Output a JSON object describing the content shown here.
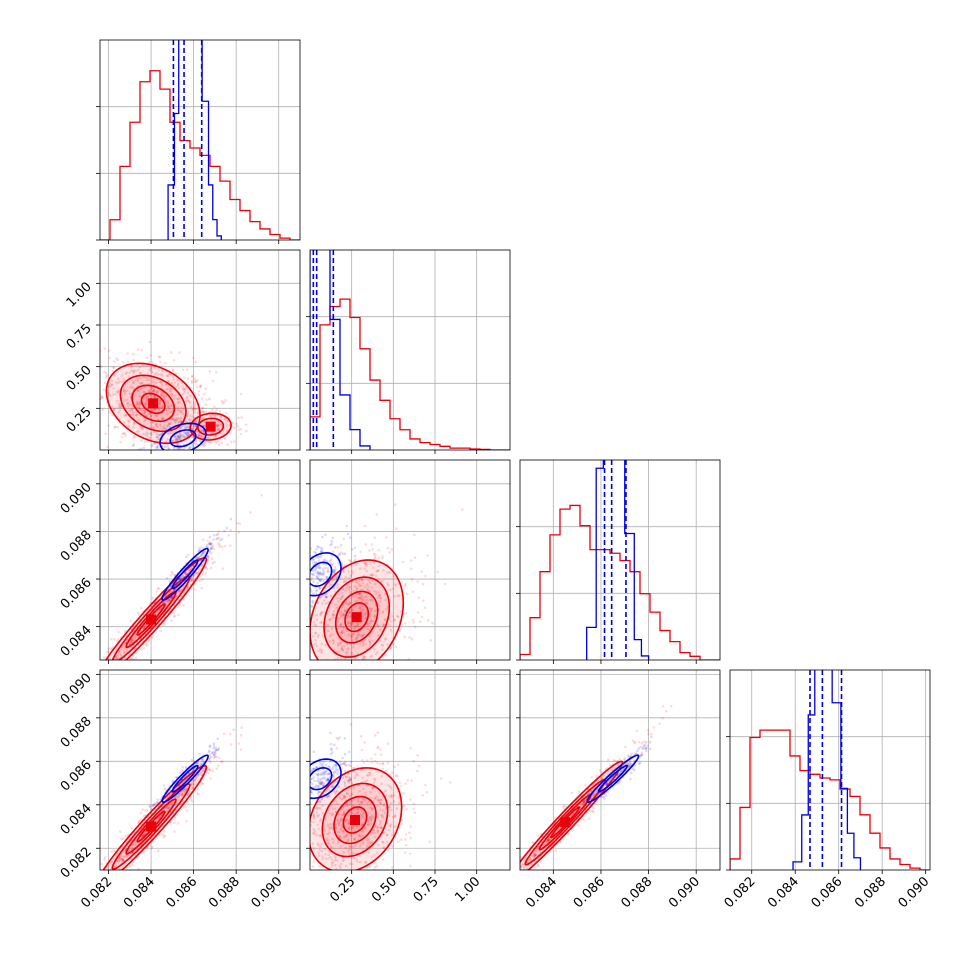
{
  "chart_data": {
    "type": "corner",
    "parameters": 4,
    "grid": true,
    "colors": {
      "red": "#e8000b",
      "blue": "#0000dd",
      "tick": "#000000",
      "grid": "#b0b0b0"
    },
    "axes": {
      "x0": {
        "range": [
          0.0816,
          0.091
        ],
        "ticks": [
          0.082,
          0.084,
          0.086,
          0.088,
          0.09
        ],
        "tick_labels": [
          "0.082",
          "0.084",
          "0.086",
          "0.088",
          "0.090"
        ]
      },
      "x1": {
        "range": [
          0.0,
          1.2
        ],
        "ticks": [
          0.25,
          0.5,
          0.75,
          1.0
        ],
        "tick_labels": [
          "0.25",
          "0.50",
          "0.75",
          "1.00"
        ]
      },
      "x2": {
        "range": [
          0.0826,
          0.091
        ],
        "ticks": [
          0.084,
          0.086,
          0.088,
          0.09
        ],
        "tick_labels": [
          "0.084",
          "0.086",
          "0.088",
          "0.090"
        ]
      },
      "x3": {
        "range": [
          0.081,
          0.0902
        ],
        "ticks": [
          0.082,
          0.084,
          0.086,
          0.088,
          0.09
        ],
        "tick_labels": [
          "0.082",
          "0.084",
          "0.086",
          "0.088",
          "0.090"
        ]
      },
      "y1": {
        "range": [
          0.0,
          1.2
        ],
        "ticks": [
          0.25,
          0.5,
          0.75,
          1.0
        ],
        "tick_labels": [
          "0.25",
          "0.50",
          "0.75",
          "1.00"
        ]
      },
      "y2": {
        "range": [
          0.0826,
          0.091
        ],
        "ticks": [
          0.084,
          0.086,
          0.088,
          0.09
        ],
        "tick_labels": [
          "0.084",
          "0.086",
          "0.088",
          "0.090"
        ]
      },
      "y3": {
        "range": [
          0.081,
          0.0902
        ],
        "ticks": [
          0.082,
          0.084,
          0.086,
          0.088,
          0.09
        ],
        "tick_labels": [
          "0.082",
          "0.084",
          "0.086",
          "0.088",
          "0.090"
        ]
      }
    },
    "histograms": [
      {
        "param": 0,
        "range": [
          0.0816,
          0.091
        ],
        "red": [
          0.0,
          0.11,
          0.4,
          0.64,
          0.86,
          0.92,
          0.82,
          0.64,
          0.54,
          0.5,
          0.46,
          0.4,
          0.32,
          0.22,
          0.16,
          0.1,
          0.06,
          0.03,
          0.01,
          0.0
        ],
        "blue_edges": [
          0.0848,
          0.0851,
          0.0853,
          0.0857,
          0.0861,
          0.0864,
          0.0867,
          0.0869,
          0.0871,
          0.0873
        ],
        "blue_counts": [
          0.27,
          0.62,
          1.0,
          1.0,
          1.0,
          0.68,
          0.27,
          0.1,
          0.02
        ],
        "blue_quantiles": [
          0.08505,
          0.08555,
          0.08638
        ]
      },
      {
        "param": 1,
        "range": [
          0.0,
          1.2
        ],
        "red": [
          0.18,
          0.68,
          0.78,
          0.82,
          0.72,
          0.55,
          0.38,
          0.27,
          0.17,
          0.11,
          0.06,
          0.04,
          0.03,
          0.02,
          0.01,
          0.01,
          0.005,
          0.003,
          0.0,
          0.0
        ],
        "blue_edges": [
          0.0,
          0.06,
          0.12,
          0.18,
          0.24,
          0.3,
          0.36
        ],
        "blue_counts": [
          1.0,
          1.0,
          0.64,
          0.27,
          0.1,
          0.02
        ],
        "blue_quantiles": [
          0.02,
          0.04,
          0.14
        ]
      },
      {
        "param": 2,
        "range": [
          0.0826,
          0.091
        ],
        "red": [
          0.03,
          0.23,
          0.48,
          0.68,
          0.82,
          0.84,
          0.73,
          0.6,
          0.6,
          0.58,
          0.54,
          0.48,
          0.36,
          0.26,
          0.16,
          0.1,
          0.04,
          0.02,
          0.0,
          0.0
        ],
        "blue_edges": [
          0.0854,
          0.0858,
          0.0861,
          0.0865,
          0.087,
          0.0874,
          0.0877,
          0.088
        ],
        "blue_counts": [
          0.16,
          0.94,
          1.0,
          1.0,
          0.62,
          0.1,
          0.02
        ],
        "blue_quantiles": [
          0.08615,
          0.08645,
          0.08705
        ]
      },
      {
        "param": 3,
        "range": [
          0.081,
          0.0902
        ],
        "red": [
          0.06,
          0.34,
          0.72,
          0.76,
          0.76,
          0.76,
          0.62,
          0.54,
          0.52,
          0.5,
          0.49,
          0.44,
          0.4,
          0.3,
          0.2,
          0.12,
          0.06,
          0.03,
          0.01,
          0.0
        ],
        "blue_edges": [
          0.0839,
          0.0843,
          0.0846,
          0.0849,
          0.0853,
          0.0857,
          0.0861,
          0.0864,
          0.0867,
          0.087
        ],
        "blue_counts": [
          0.04,
          0.27,
          0.76,
          1.0,
          1.0,
          0.82,
          0.4,
          0.18,
          0.06
        ],
        "blue_quantiles": [
          0.08468,
          0.08525,
          0.08613
        ]
      }
    ],
    "scatter_2d": [
      {
        "x": 0,
        "y": 1,
        "red": {
          "center": [
            0.0841,
            0.28
          ],
          "spread": [
            0.0011,
            0.12
          ],
          "rho": -0.3,
          "contours": [
            0.5,
            0.9,
            1.4,
            2.0
          ]
        },
        "red_tail": {
          "center": [
            0.0868,
            0.14
          ],
          "spread": [
            0.0006,
            0.05
          ],
          "rho": 0.1,
          "contours": [
            1.0,
            1.6
          ]
        },
        "blue": {
          "center": [
            0.0855,
            0.07
          ],
          "spread": [
            0.0006,
            0.05
          ],
          "rho": 0.3,
          "contours": [
            1.0,
            1.8
          ]
        }
      },
      {
        "x": 0,
        "y": 2,
        "red": {
          "center": [
            0.084,
            0.0843
          ],
          "spread": [
            0.0013,
            0.0013
          ],
          "rho": 0.97,
          "contours": [
            0.5,
            0.9,
            1.4,
            2.0
          ]
        },
        "blue": {
          "center": [
            0.0856,
            0.0862
          ],
          "spread": [
            0.0006,
            0.0006
          ],
          "rho": 0.95,
          "contours": [
            1.0,
            1.8
          ]
        }
      },
      {
        "x": 1,
        "y": 2,
        "red": {
          "center": [
            0.28,
            0.0844
          ],
          "spread": [
            0.14,
            0.0012
          ],
          "rho": 0.25,
          "contours": [
            0.5,
            0.9,
            1.4,
            2.0
          ]
        },
        "blue": {
          "center": [
            0.06,
            0.0862
          ],
          "spread": [
            0.07,
            0.0005
          ],
          "rho": 0.3,
          "contours": [
            1.0,
            1.8
          ]
        }
      },
      {
        "x": 0,
        "y": 3,
        "red": {
          "center": [
            0.084,
            0.083
          ],
          "spread": [
            0.0013,
            0.0014
          ],
          "rho": 0.97,
          "contours": [
            0.5,
            0.9,
            1.4,
            2.0
          ]
        },
        "blue": {
          "center": [
            0.0856,
            0.0852
          ],
          "spread": [
            0.0006,
            0.0006
          ],
          "rho": 0.95,
          "contours": [
            1.0,
            1.8
          ]
        }
      },
      {
        "x": 1,
        "y": 3,
        "red": {
          "center": [
            0.27,
            0.0833
          ],
          "spread": [
            0.14,
            0.0012
          ],
          "rho": 0.25,
          "contours": [
            0.5,
            0.9,
            1.4,
            2.0
          ]
        },
        "blue": {
          "center": [
            0.06,
            0.0852
          ],
          "spread": [
            0.07,
            0.0005
          ],
          "rho": 0.3,
          "contours": [
            1.0,
            1.8
          ]
        }
      },
      {
        "x": 2,
        "y": 3,
        "red": {
          "center": [
            0.0845,
            0.0832
          ],
          "spread": [
            0.0012,
            0.0014
          ],
          "rho": 0.98,
          "contours": [
            0.5,
            0.9,
            1.4,
            2.0
          ]
        },
        "blue": {
          "center": [
            0.0865,
            0.0852
          ],
          "spread": [
            0.0006,
            0.0006
          ],
          "rho": 0.96,
          "contours": [
            1.0,
            1.8
          ]
        }
      }
    ]
  }
}
